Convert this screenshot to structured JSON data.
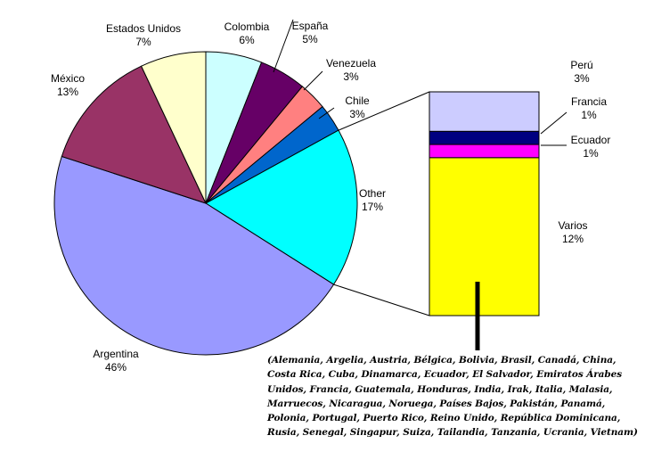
{
  "chart_data": [
    {
      "type": "pie",
      "title": "",
      "slices": [
        {
          "label": "Colombia",
          "value": 6,
          "pct_label": "6%",
          "color": "#CCFFFF"
        },
        {
          "label": "España",
          "value": 5,
          "pct_label": "5%",
          "color": "#660066"
        },
        {
          "label": "Venezuela",
          "value": 3,
          "pct_label": "3%",
          "color": "#FF8080"
        },
        {
          "label": "Chile",
          "value": 3,
          "pct_label": "3%",
          "color": "#0066CC"
        },
        {
          "label": "Other",
          "value": 17,
          "pct_label": "17%",
          "color": "#00FFFF"
        },
        {
          "label": "Argentina",
          "value": 46,
          "pct_label": "46%",
          "color": "#9999FF"
        },
        {
          "label": "México",
          "value": 13,
          "pct_label": "13%",
          "color": "#993366"
        },
        {
          "label": "Estados Unidos",
          "value": 7,
          "pct_label": "7%",
          "color": "#FFFFCC"
        }
      ],
      "exploded_slice": "Other"
    },
    {
      "type": "bar",
      "stacked": true,
      "segments": [
        {
          "label": "Varios",
          "value": 12,
          "pct_label": "12%",
          "color": "#FFFF00"
        },
        {
          "label": "Ecuador",
          "value": 1,
          "pct_label": "1%",
          "color": "#FF00FF"
        },
        {
          "label": "Francia",
          "value": 1,
          "pct_label": "1%",
          "color": "#000080"
        },
        {
          "label": "Perú",
          "value": 3,
          "pct_label": "3%",
          "color": "#CCCCFF"
        }
      ]
    }
  ],
  "annotation": "(Alemania, Argelia, Austria, Bélgica, Bolivia, Brasil, Canadá, China, Costa Rica, Cuba, Dinamarca, Ecuador, El Salvador, Emiratos Árabes Unidos, Francia, Guatemala, Honduras, India, Irak, Italia, Malasia, Marruecos, Nicaragua, Noruega, Países Bajos, Pakistán, Panamá, Polonia, Portugal, Puerto Rico, Reino Unido, República Dominicana, Rusia, Senegal, Singapur, Suiza, Tailandia, Tanzania, Ucrania, Vietnam)"
}
